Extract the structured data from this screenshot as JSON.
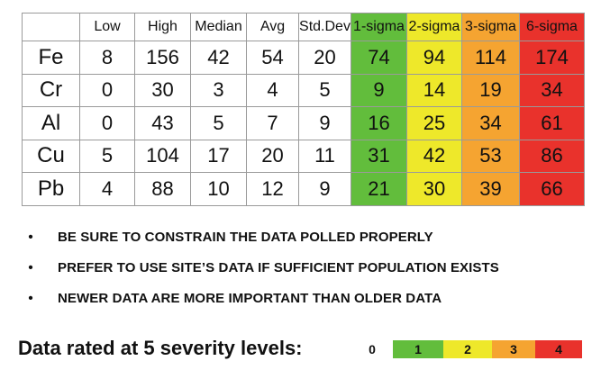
{
  "table": {
    "headers": [
      "",
      "Low",
      "High",
      "Median",
      "Avg",
      "Std.Dev",
      "1-sigma",
      "2-sigma",
      "3-sigma",
      "6-sigma"
    ],
    "rows": [
      {
        "element": "Fe",
        "low": "8",
        "high": "156",
        "median": "42",
        "avg": "54",
        "stddev": "20",
        "s1": "74",
        "s2": "94",
        "s3": "114",
        "s6": "174"
      },
      {
        "element": "Cr",
        "low": "0",
        "high": "30",
        "median": "3",
        "avg": "4",
        "stddev": "5",
        "s1": "9",
        "s2": "14",
        "s3": "19",
        "s6": "34"
      },
      {
        "element": "Al",
        "low": "0",
        "high": "43",
        "median": "5",
        "avg": "7",
        "stddev": "9",
        "s1": "16",
        "s2": "25",
        "s3": "34",
        "s6": "61"
      },
      {
        "element": "Cu",
        "low": "5",
        "high": "104",
        "median": "17",
        "avg": "20",
        "stddev": "11",
        "s1": "31",
        "s2": "42",
        "s3": "53",
        "s6": "86"
      },
      {
        "element": "Pb",
        "low": "4",
        "high": "88",
        "median": "10",
        "avg": "12",
        "stddev": "9",
        "s1": "21",
        "s2": "30",
        "s3": "39",
        "s6": "66"
      }
    ]
  },
  "notes": [
    {
      "bullet": "•",
      "text": "BE SURE TO CONSTRAIN THE DATA POLLED PROPERLY"
    },
    {
      "bullet": "•",
      "text": "PREFER TO USE SITE’S DATA IF SUFFICIENT POPULATION EXISTS"
    },
    {
      "bullet": "•",
      "text": "NEWER DATA ARE MORE IMPORTANT THAN OLDER DATA"
    }
  ],
  "legend": {
    "title": "Data rated at 5 severity levels:",
    "levels": [
      "0",
      "1",
      "2",
      "3",
      "4"
    ]
  },
  "colors": {
    "sigma1": "#62bd3c",
    "sigma2": "#eee82a",
    "sigma3": "#f5a431",
    "sigma6": "#e9322c"
  }
}
